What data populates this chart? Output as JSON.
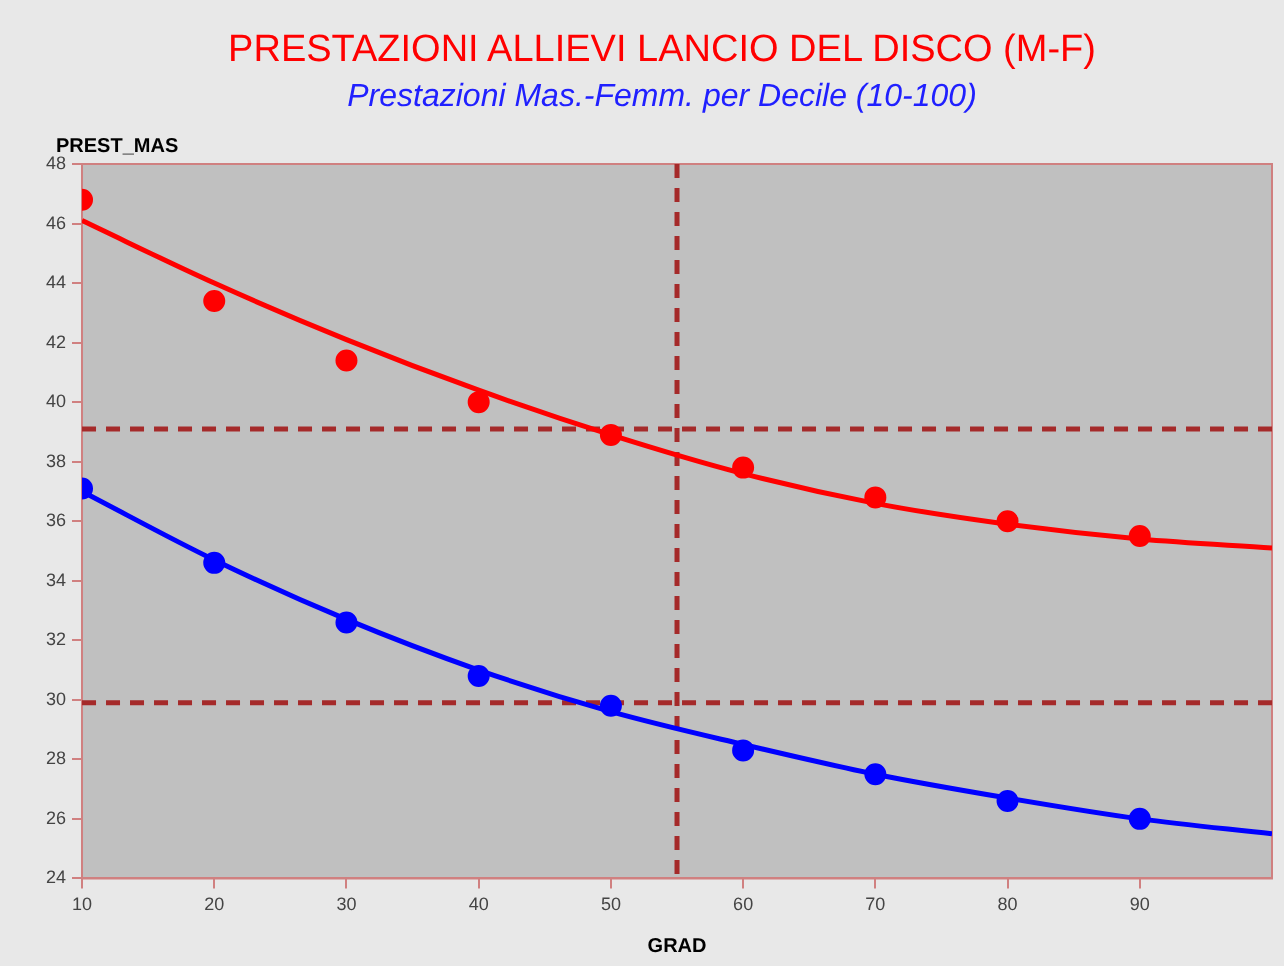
{
  "chart_data": {
    "type": "scatter",
    "title": "PRESTAZIONI ALLIEVI LANCIO DEL DISCO (M-F)",
    "subtitle": "Prestazioni Mas.-Femm. per Decile (10-100)",
    "xlabel": "GRAD",
    "ylabel": "PREST_MAS",
    "xlim": [
      10,
      100
    ],
    "xticks": [
      10,
      20,
      30,
      40,
      50,
      60,
      70,
      80,
      90
    ],
    "ylim": [
      24,
      48
    ],
    "yticks": [
      24,
      26,
      28,
      30,
      32,
      34,
      36,
      38,
      40,
      42,
      44,
      46,
      48
    ],
    "grid": false,
    "legend": false,
    "marker": "circle",
    "series": [
      {
        "color": "#ff0000",
        "x": [
          10,
          20,
          30,
          40,
          50,
          60,
          70,
          80,
          90
        ],
        "values": [
          46.8,
          43.4,
          41.4,
          40.0,
          38.9,
          37.8,
          36.8,
          36.0,
          35.5
        ]
      },
      {
        "color": "#0000ff",
        "x": [
          10,
          20,
          30,
          40,
          50,
          60,
          70,
          80,
          90
        ],
        "values": [
          37.1,
          34.6,
          32.6,
          30.8,
          29.8,
          28.3,
          27.5,
          26.6,
          26.0
        ]
      },
      {
        "type": "line",
        "color": "#ff0000",
        "marker": "none",
        "x": [
          10,
          20,
          30,
          40,
          50,
          60,
          70,
          80,
          90,
          100
        ],
        "values": [
          46.1,
          44.0,
          42.1,
          40.4,
          38.9,
          37.6,
          36.6,
          35.9,
          35.4,
          35.1
        ]
      },
      {
        "type": "line",
        "color": "#0000ff",
        "marker": "none",
        "x": [
          10,
          20,
          30,
          40,
          50,
          60,
          70,
          80,
          90,
          100
        ],
        "values": [
          37.0,
          34.7,
          32.7,
          31.0,
          29.6,
          28.5,
          27.5,
          26.7,
          26.0,
          25.5
        ]
      }
    ],
    "ref_lines": [
      {
        "axis": "y",
        "value": 39.1,
        "color": "#a52a2a",
        "line_style": "dashed"
      },
      {
        "axis": "y",
        "value": 29.9,
        "color": "#a52a2a",
        "line_style": "dashed"
      },
      {
        "axis": "x",
        "value": 55,
        "color": "#a52a2a",
        "line_style": "dashed"
      }
    ]
  }
}
